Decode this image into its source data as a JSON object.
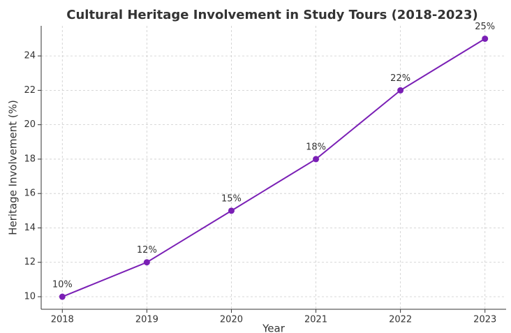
{
  "chart_data": {
    "type": "line",
    "title": "Cultural Heritage Involvement in Study Tours (2018-2023)",
    "x_label": "Year",
    "y_label": "Heritage Involvement (%)",
    "x": [
      2018,
      2019,
      2020,
      2021,
      2022,
      2023
    ],
    "series": [
      {
        "name": "Heritage Involvement",
        "color": "#7a1fb5",
        "values": [
          10,
          12,
          15,
          18,
          22,
          25
        ],
        "value_labels": [
          "10%",
          "12%",
          "15%",
          "18%",
          "22%",
          "25%"
        ]
      }
    ],
    "xlim": [
      2017.75,
      2023.25
    ],
    "xticks": [
      2018,
      2019,
      2020,
      2021,
      2022,
      2023
    ],
    "ylim": [
      9.27,
      25.75
    ],
    "yticks": [
      10,
      12,
      14,
      16,
      18,
      20,
      22,
      24
    ],
    "grid": true
  }
}
